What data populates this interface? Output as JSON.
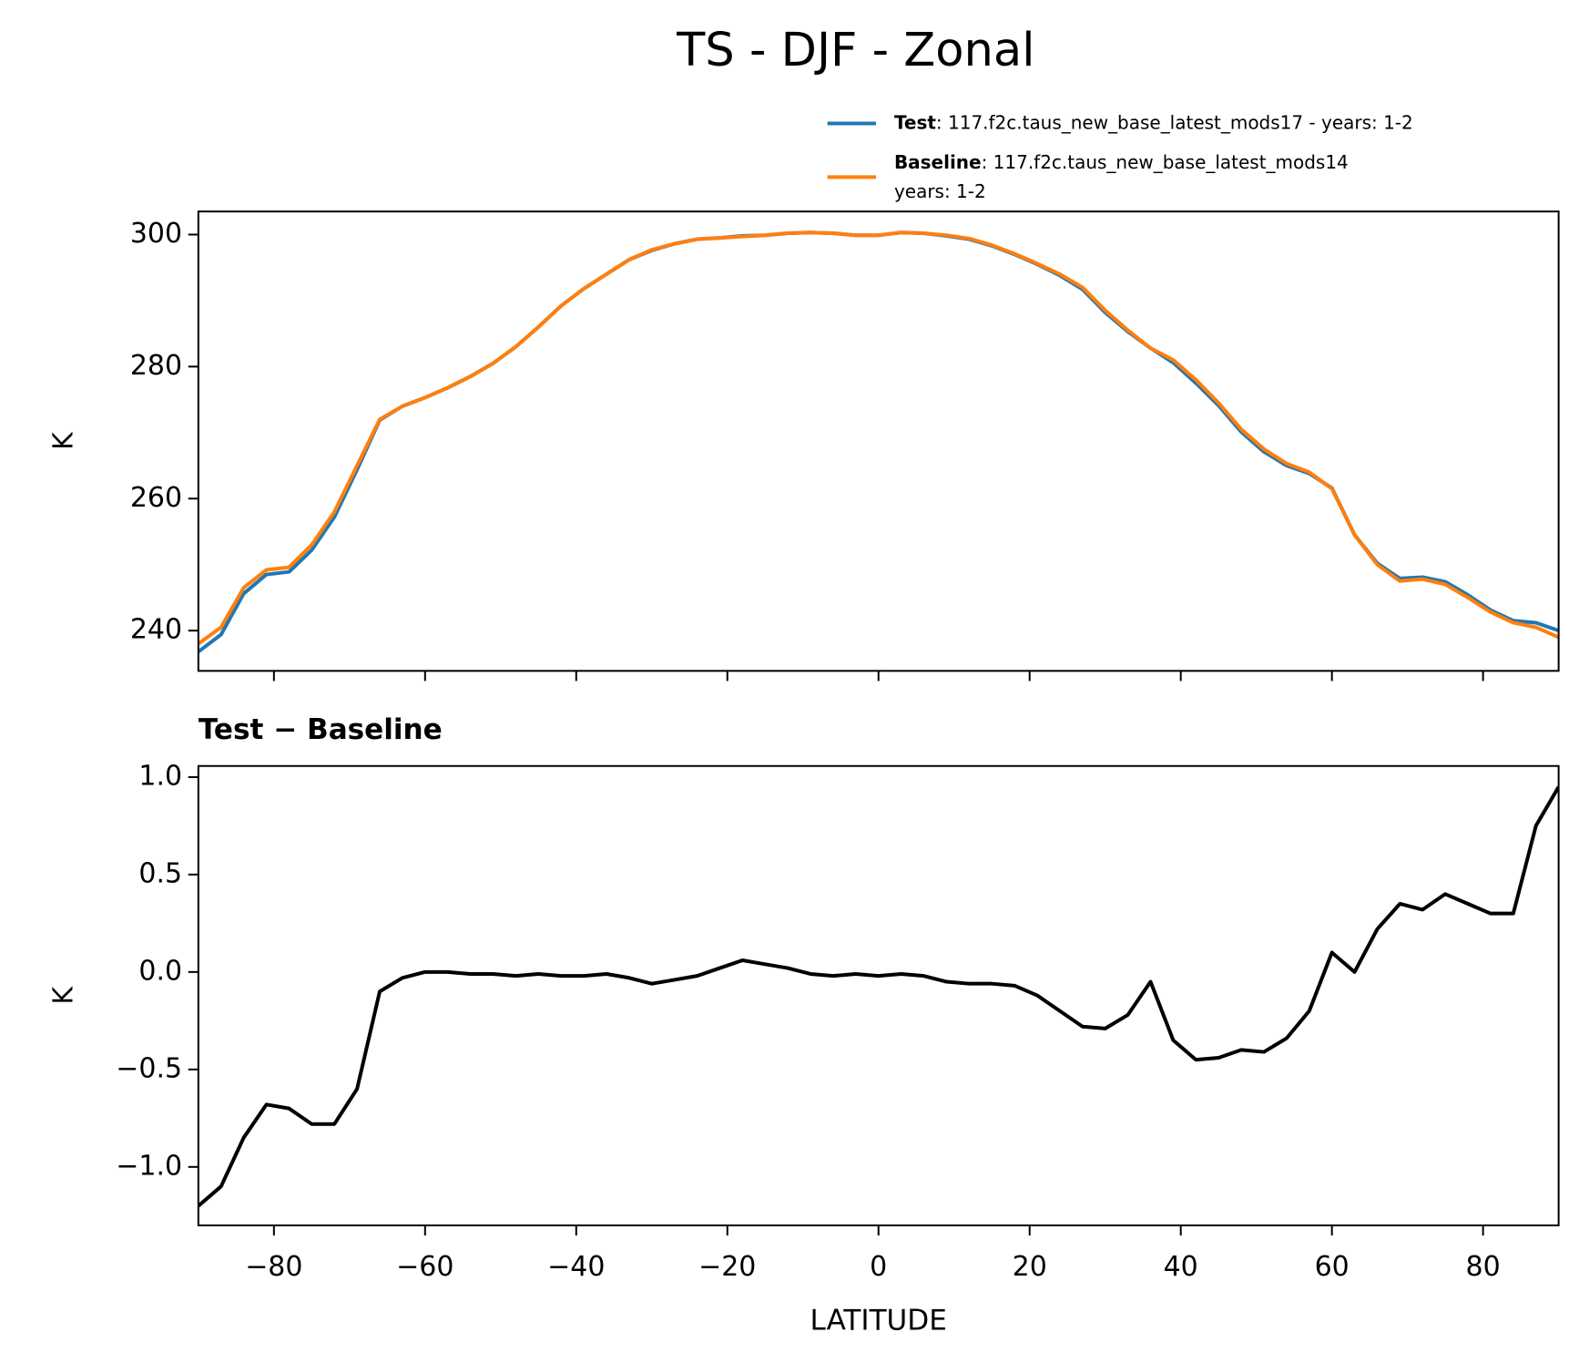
{
  "title": "TS - DJF - Zonal",
  "chart_data": [
    {
      "type": "line",
      "ylabel": "K",
      "xlim": [
        -90,
        90
      ],
      "ylim": [
        233.9,
        303.5
      ],
      "xticks": [
        -80,
        -60,
        -40,
        -20,
        0,
        20,
        40,
        60,
        80
      ],
      "yticks": [
        240,
        260,
        280,
        300
      ],
      "legend": "upper right",
      "x": [
        -90,
        -87,
        -84,
        -81,
        -78,
        -75,
        -72,
        -69,
        -66,
        -63,
        -60,
        -57,
        -54,
        -51,
        -48,
        -45,
        -42,
        -39,
        -36,
        -33,
        -30,
        -27,
        -24,
        -21,
        -18,
        -15,
        -12,
        -9,
        -6,
        -3,
        0,
        3,
        6,
        9,
        12,
        15,
        18,
        21,
        24,
        27,
        30,
        33,
        36,
        39,
        42,
        45,
        48,
        51,
        54,
        57,
        60,
        63,
        66,
        69,
        72,
        75,
        78,
        81,
        84,
        87,
        90
      ],
      "series": [
        {
          "name": "Test",
          "label": [
            ": 117.f2c.taus_new_base_latest_mods17 - years: 1-2"
          ],
          "color": "#1f77b4",
          "values": [
            236.8,
            239.4,
            245.6,
            248.5,
            248.9,
            252.2,
            257.2,
            264.4,
            271.9,
            274.0,
            275.3,
            276.8,
            278.5,
            280.5,
            283.0,
            286.0,
            289.2,
            291.8,
            294.0,
            296.2,
            297.6,
            298.6,
            299.3,
            299.5,
            299.8,
            299.9,
            300.2,
            300.3,
            300.2,
            299.9,
            299.9,
            300.3,
            300.2,
            299.8,
            299.3,
            298.3,
            297.0,
            295.5,
            293.8,
            291.7,
            288.2,
            285.3,
            282.8,
            280.6,
            277.5,
            274.1,
            270.1,
            267.1,
            265.0,
            263.8,
            261.6,
            254.5,
            250.2,
            247.9,
            248.1,
            247.4,
            245.4,
            243.1,
            241.5,
            241.2,
            240.0
          ]
        },
        {
          "name": "Baseline",
          "label": [
            ": 117.f2c.taus_new_base_latest_mods14",
            "years: 1-2"
          ],
          "color": "#ff7f0e",
          "values": [
            238.0,
            240.5,
            246.5,
            249.2,
            249.6,
            253.0,
            258.0,
            265.0,
            272.0,
            274.0,
            275.3,
            276.8,
            278.5,
            280.5,
            283.0,
            286.0,
            289.2,
            291.8,
            294.0,
            296.2,
            297.7,
            298.6,
            299.3,
            299.5,
            299.7,
            299.9,
            300.2,
            300.3,
            300.2,
            299.9,
            299.9,
            300.3,
            300.2,
            299.9,
            299.4,
            298.4,
            297.1,
            295.6,
            294.0,
            292.0,
            288.5,
            285.5,
            282.8,
            281.0,
            278.0,
            274.5,
            270.5,
            267.5,
            265.3,
            264.0,
            261.5,
            254.5,
            250.0,
            247.5,
            247.8,
            247.0,
            245.0,
            242.8,
            241.2,
            240.5,
            239.0
          ]
        }
      ]
    },
    {
      "type": "line",
      "title": "Test − Baseline",
      "xlabel": "LATITUDE",
      "ylabel": "K",
      "xlim": [
        -90,
        90
      ],
      "ylim": [
        -1.3,
        1.057
      ],
      "xticks": [
        {
          "value": -80,
          "label": "−80"
        },
        {
          "value": -60,
          "label": "−60"
        },
        {
          "value": -40,
          "label": "−40"
        },
        {
          "value": -20,
          "label": "−20"
        },
        0,
        20,
        40,
        60,
        80
      ],
      "yticks": [
        {
          "value": -1,
          "label": "−1.0"
        },
        {
          "value": -0.5,
          "label": "−0.5"
        },
        {
          "value": 0,
          "label": "0.0"
        },
        {
          "value": 0.5,
          "label": "0.5"
        },
        {
          "value": 1,
          "label": "1.0"
        }
      ],
      "x": [
        -90,
        -87,
        -84,
        -81,
        -78,
        -75,
        -72,
        -69,
        -66,
        -63,
        -60,
        -57,
        -54,
        -51,
        -48,
        -45,
        -42,
        -39,
        -36,
        -33,
        -30,
        -27,
        -24,
        -21,
        -18,
        -15,
        -12,
        -9,
        -6,
        -3,
        0,
        3,
        6,
        9,
        12,
        15,
        18,
        21,
        24,
        27,
        30,
        33,
        36,
        39,
        42,
        45,
        48,
        51,
        54,
        57,
        60,
        63,
        66,
        69,
        72,
        75,
        78,
        81,
        84,
        87,
        90
      ],
      "series": [
        {
          "color": "#000000",
          "values": [
            -1.2,
            -1.1,
            -0.85,
            -0.68,
            -0.7,
            -0.78,
            -0.78,
            -0.6,
            -0.1,
            -0.03,
            0.0,
            0.0,
            -0.01,
            -0.01,
            -0.02,
            -0.01,
            -0.02,
            -0.02,
            -0.01,
            -0.03,
            -0.06,
            -0.04,
            -0.02,
            0.02,
            0.06,
            0.04,
            0.02,
            -0.01,
            -0.02,
            -0.01,
            -0.02,
            -0.01,
            -0.02,
            -0.05,
            -0.06,
            -0.06,
            -0.07,
            -0.12,
            -0.2,
            -0.28,
            -0.29,
            -0.22,
            -0.05,
            -0.35,
            -0.45,
            -0.44,
            -0.4,
            -0.41,
            -0.34,
            -0.2,
            0.1,
            0.0,
            0.22,
            0.35,
            0.32,
            0.4,
            0.35,
            0.3,
            0.3,
            0.75,
            0.95
          ]
        }
      ]
    }
  ]
}
